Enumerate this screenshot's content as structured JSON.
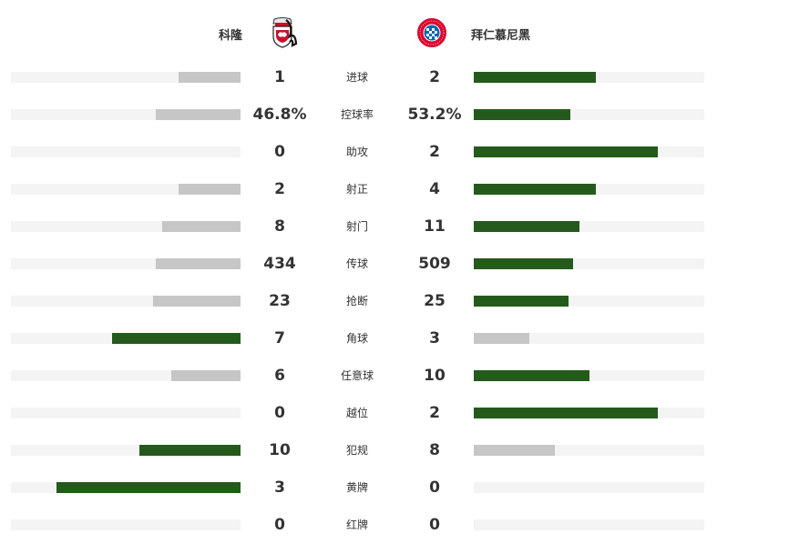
{
  "teams": {
    "home": {
      "name": "科隆",
      "logo_icon": "fc-koln-crest-icon"
    },
    "away": {
      "name": "拜仁慕尼黑",
      "logo_icon": "fc-bayern-crest-icon"
    }
  },
  "colors": {
    "winning_bar": "#245a1b",
    "losing_bar": "#c6c6c6",
    "track": "#f4f4f4",
    "text": "#333333"
  },
  "stats": [
    {
      "label": "进球",
      "home": "1",
      "away": "2",
      "home_bar": 0.27,
      "away_bar": 0.53,
      "leader": "away"
    },
    {
      "label": "控球率",
      "home": "46.8%",
      "away": "53.2%",
      "home_bar": 0.37,
      "away_bar": 0.42,
      "leader": "away"
    },
    {
      "label": "助攻",
      "home": "0",
      "away": "2",
      "home_bar": 0.0,
      "away_bar": 0.8,
      "leader": "away"
    },
    {
      "label": "射正",
      "home": "2",
      "away": "4",
      "home_bar": 0.27,
      "away_bar": 0.53,
      "leader": "away"
    },
    {
      "label": "射门",
      "home": "8",
      "away": "11",
      "home_bar": 0.34,
      "away_bar": 0.46,
      "leader": "away"
    },
    {
      "label": "传球",
      "home": "434",
      "away": "509",
      "home_bar": 0.37,
      "away_bar": 0.43,
      "leader": "away"
    },
    {
      "label": "抢断",
      "home": "23",
      "away": "25",
      "home_bar": 0.38,
      "away_bar": 0.41,
      "leader": "away"
    },
    {
      "label": "角球",
      "home": "7",
      "away": "3",
      "home_bar": 0.56,
      "away_bar": 0.24,
      "leader": "home"
    },
    {
      "label": "任意球",
      "home": "6",
      "away": "10",
      "home_bar": 0.3,
      "away_bar": 0.5,
      "leader": "away"
    },
    {
      "label": "越位",
      "home": "0",
      "away": "2",
      "home_bar": 0.0,
      "away_bar": 0.8,
      "leader": "away"
    },
    {
      "label": "犯规",
      "home": "10",
      "away": "8",
      "home_bar": 0.44,
      "away_bar": 0.35,
      "leader": "home"
    },
    {
      "label": "黄牌",
      "home": "3",
      "away": "0",
      "home_bar": 0.8,
      "away_bar": 0.0,
      "leader": "home"
    },
    {
      "label": "红牌",
      "home": "0",
      "away": "0",
      "home_bar": 0.0,
      "away_bar": 0.0,
      "leader": "none"
    }
  ]
}
